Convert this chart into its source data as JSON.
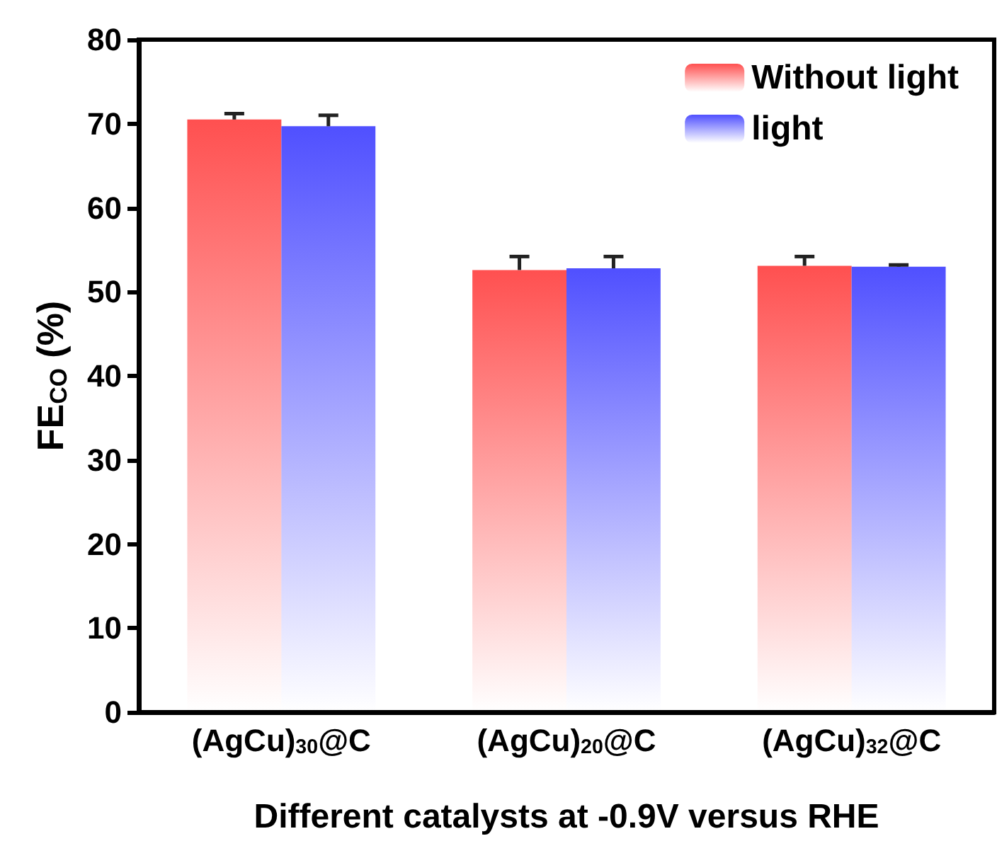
{
  "chart_data": {
    "type": "bar",
    "xlabel": "Different catalysts at -0.9V versus RHE",
    "ylabel": "FE$_{CO}$ (%)",
    "categories": [
      "(AgCu)$_{30}$@C",
      "(AgCu)$_{20}$@C",
      "(AgCu)$_{32}$@C"
    ],
    "series": [
      {
        "name": "Without light",
        "color": "#ff5050",
        "values": [
          70.5,
          52.6,
          53.1
        ],
        "errors": [
          0.7,
          1.6,
          1.1
        ]
      },
      {
        "name": "light",
        "color": "#5050ff",
        "values": [
          69.7,
          52.8,
          53.0
        ],
        "errors": [
          1.3,
          1.4,
          0.2
        ]
      }
    ],
    "ylim": [
      0,
      80
    ],
    "yticks": [
      0,
      10,
      20,
      30,
      40,
      50,
      60,
      70,
      80
    ],
    "grid": false,
    "legend": "top right"
  }
}
